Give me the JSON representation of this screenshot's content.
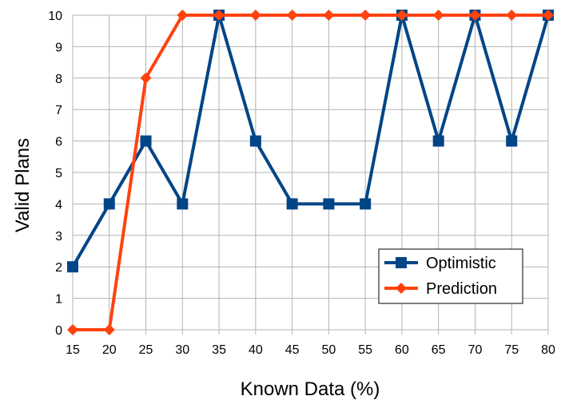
{
  "chart_data": {
    "type": "line",
    "title": "",
    "xlabel": "Known Data (%)",
    "ylabel": "Valid Plans",
    "x": [
      15,
      20,
      25,
      30,
      35,
      40,
      45,
      50,
      55,
      60,
      65,
      70,
      75,
      80
    ],
    "ylim": [
      0,
      10
    ],
    "yticks": [
      0,
      1,
      2,
      3,
      4,
      5,
      6,
      7,
      8,
      9,
      10
    ],
    "grid": true,
    "legend_position": "bottom-right",
    "series": [
      {
        "name": "Optimistic",
        "color": "#004586",
        "marker": "square",
        "values": [
          2,
          4,
          6,
          4,
          10,
          6,
          4,
          4,
          4,
          10,
          6,
          10,
          6,
          10
        ]
      },
      {
        "name": "Prediction",
        "color": "#ff420e",
        "marker": "diamond",
        "values": [
          0,
          0,
          8,
          10,
          10,
          10,
          10,
          10,
          10,
          10,
          10,
          10,
          10,
          10
        ]
      }
    ]
  }
}
